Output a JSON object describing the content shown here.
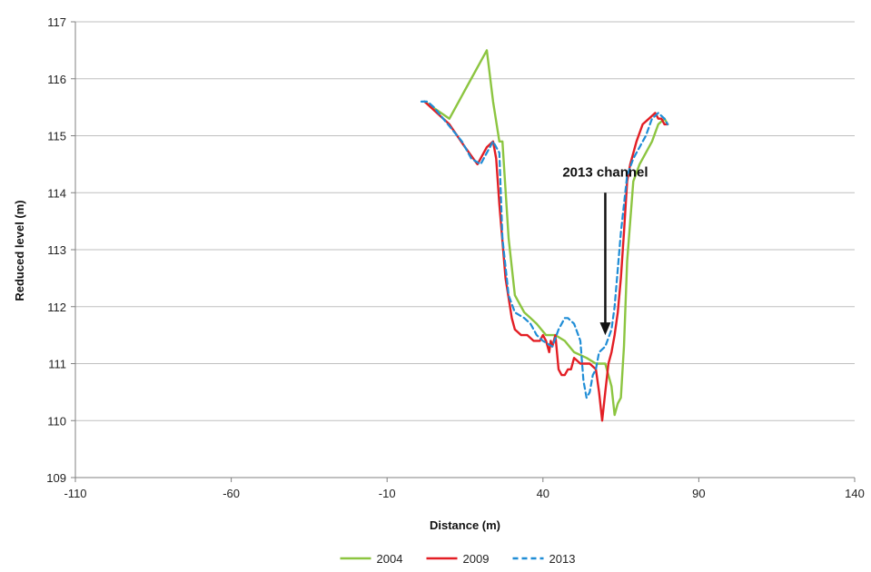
{
  "chart_data": {
    "type": "line",
    "title": "",
    "xlabel": "Distance (m)",
    "ylabel": "Reduced level (m)",
    "xlim": [
      -110,
      140
    ],
    "ylim": [
      109,
      117
    ],
    "xticks": [
      -110,
      -60,
      -10,
      40,
      90,
      140
    ],
    "yticks": [
      109,
      110,
      111,
      112,
      113,
      114,
      115,
      116,
      117
    ],
    "xtick_labels": [
      "-110",
      "-60",
      "-10",
      "40",
      "90",
      "140"
    ],
    "ytick_labels": [
      "109",
      "110",
      "111",
      "112",
      "113",
      "114",
      "115",
      "116",
      "117"
    ],
    "grid": "horizontal",
    "legend_position": "bottom-center",
    "annotation": {
      "text": "2013 channel",
      "arrow_from": [
        60,
        114.0
      ],
      "arrow_to": [
        60,
        111.5
      ]
    },
    "series": [
      {
        "name": "2004",
        "color": "#8cc540",
        "style": "solid",
        "x": [
          2,
          10,
          16,
          22,
          24,
          26,
          27,
          29,
          31,
          34,
          36,
          38,
          41,
          44,
          47,
          50,
          54,
          57,
          60,
          62,
          63,
          64,
          65,
          66,
          67,
          69,
          71,
          73,
          75,
          77,
          79,
          80
        ],
        "y": [
          115.6,
          115.3,
          115.9,
          116.5,
          115.6,
          114.9,
          114.9,
          113.2,
          112.2,
          111.9,
          111.8,
          111.7,
          111.5,
          111.5,
          111.4,
          111.2,
          111.1,
          111.0,
          111.0,
          110.6,
          110.1,
          110.3,
          110.4,
          111.3,
          112.8,
          114.2,
          114.5,
          114.7,
          114.9,
          115.2,
          115.3,
          115.2
        ]
      },
      {
        "name": "2009",
        "color": "#e31e24",
        "style": "solid",
        "x": [
          2,
          6,
          10,
          15,
          19,
          22,
          24,
          25,
          26,
          28,
          30,
          31,
          33,
          35,
          37,
          39,
          40,
          41,
          42,
          42.5,
          43,
          44,
          45,
          46,
          47,
          48,
          49,
          50,
          52,
          55,
          57,
          58,
          59,
          60,
          61,
          62,
          63,
          64,
          65,
          66,
          67,
          68,
          70,
          72,
          74,
          76,
          77,
          78,
          79,
          80
        ],
        "y": [
          115.6,
          115.4,
          115.2,
          114.8,
          114.5,
          114.8,
          114.9,
          114.6,
          113.8,
          112.5,
          111.8,
          111.6,
          111.5,
          111.5,
          111.4,
          111.4,
          111.5,
          111.4,
          111.2,
          111.4,
          111.3,
          111.5,
          110.9,
          110.8,
          110.8,
          110.9,
          110.9,
          111.1,
          111.0,
          111.0,
          110.9,
          110.5,
          110.0,
          110.5,
          111.0,
          111.2,
          111.5,
          111.9,
          112.5,
          113.3,
          114.2,
          114.5,
          114.9,
          115.2,
          115.3,
          115.4,
          115.3,
          115.3,
          115.2,
          115.2
        ]
      },
      {
        "name": "2013",
        "color": "#1f8dd6",
        "style": "dashed",
        "x": [
          1,
          3,
          5,
          8,
          11,
          14,
          17,
          20,
          22,
          24,
          26,
          27,
          29,
          31,
          34,
          36,
          38,
          40,
          43,
          45,
          47,
          48,
          50,
          52,
          53,
          54,
          55,
          56,
          57,
          58,
          60,
          62,
          63,
          65,
          67,
          69,
          71,
          73,
          75,
          77,
          79,
          80
        ],
        "y": [
          115.6,
          115.6,
          115.5,
          115.3,
          115.1,
          114.9,
          114.6,
          114.5,
          114.7,
          114.9,
          114.7,
          113.2,
          112.2,
          111.9,
          111.8,
          111.7,
          111.5,
          111.4,
          111.3,
          111.6,
          111.8,
          111.8,
          111.7,
          111.4,
          110.7,
          110.4,
          110.5,
          110.8,
          110.9,
          111.2,
          111.3,
          111.6,
          112.0,
          113.3,
          114.3,
          114.6,
          114.8,
          115.0,
          115.3,
          115.4,
          115.3,
          115.2
        ]
      }
    ]
  }
}
